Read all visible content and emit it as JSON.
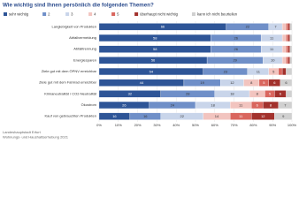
{
  "chart_data": {
    "type": "stacked-barh",
    "title": "Wie wichtig sind Ihnen persönlich die folgenden Themen?",
    "categories": [
      "Langlebigkeit von Produkten",
      "Abfallvermeidung",
      "Abfalltrennung",
      "Energiesparen",
      "Ziele gut mit dem ÖPNV erreichbar",
      "Ziele gut mit dem Fahrrad erreichbar",
      "Klimaneutralität / CO2-Neutralität",
      "Ökostrom",
      "Kauf von gebrauchten Produkten"
    ],
    "series": [
      {
        "name": "sehr wichtig",
        "color": "#2e5597",
        "values": [
          66,
          58,
          58,
          56,
          54,
          44,
          32,
          26,
          16
        ]
      },
      {
        "name": "2",
        "color": "#6f8fc8",
        "values": [
          22,
          26,
          26,
          29,
          23,
          19,
          28,
          24,
          16
        ]
      },
      {
        "name": "3",
        "color": "#c9d5ea",
        "values": [
          7,
          11,
          11,
          10,
          11,
          12,
          18,
          18,
          22
        ]
      },
      {
        "name": "4",
        "color": "#f2c4bf",
        "values": [
          2,
          2,
          2,
          2,
          5,
          8,
          8,
          11,
          14
        ]
      },
      {
        "name": "5",
        "color": "#d9665e",
        "values": [
          1,
          1,
          1,
          1,
          2,
          5,
          5,
          6,
          11
        ]
      },
      {
        "name": "überhaupt nicht wichtig",
        "color": "#a2312c",
        "values": [
          1,
          1,
          1,
          1,
          2,
          6,
          6,
          8,
          12
        ]
      },
      {
        "name": "kann ich nicht beurteilen",
        "color": "#d0d0d0",
        "values": [
          1,
          1,
          1,
          1,
          3,
          6,
          3,
          7,
          9
        ]
      }
    ],
    "xlim": [
      0,
      100
    ],
    "xticks": [
      {
        "value": 0,
        "label": "0%"
      },
      {
        "value": 10,
        "label": "10%"
      },
      {
        "value": 20,
        "label": "20%"
      },
      {
        "value": 30,
        "label": "30%"
      },
      {
        "value": 40,
        "label": "40%"
      },
      {
        "value": 50,
        "label": "50%"
      },
      {
        "value": 60,
        "label": "60%"
      },
      {
        "value": 70,
        "label": "70%"
      },
      {
        "value": 80,
        "label": "80%"
      },
      {
        "value": 90,
        "label": "90%"
      },
      {
        "value": 100,
        "label": "100%"
      }
    ],
    "grid": true,
    "source": [
      "Landeshauptstadt Erfurt",
      "Wohnungs- und Haushaltserhebung 2021"
    ]
  }
}
